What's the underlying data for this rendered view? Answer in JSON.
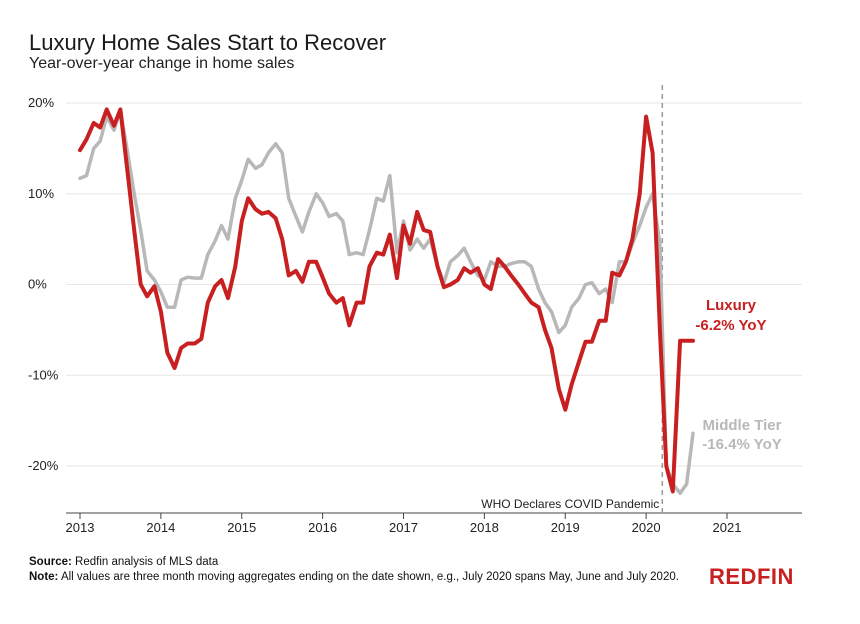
{
  "header": {
    "title": "Luxury Home Sales Start to Recover",
    "subtitle": "Year-over-year change in home sales"
  },
  "footer": {
    "source_label": "Source:",
    "source_text": "Redfin analysis of MLS data",
    "note_label": "Note:",
    "note_text": "All values are three month moving aggregates ending on the date shown, e.g., July 2020 spans May, June and July 2020."
  },
  "logo": {
    "text": "REDFIN"
  },
  "colors": {
    "luxury": "#c82021",
    "middle": "#b8b8b8",
    "grid": "#e6e6e6",
    "brand": "#c82021"
  },
  "chart_data": {
    "type": "line",
    "x_unit": "year",
    "xlim": [
      2012.82,
      2021.9
    ],
    "ylim": [
      -25,
      21
    ],
    "grid": true,
    "x_ticks": [
      2013,
      2014,
      2015,
      2016,
      2017,
      2018,
      2019,
      2020,
      2021
    ],
    "x_tick_labels": [
      "2013",
      "2014",
      "2015",
      "2016",
      "2017",
      "2018",
      "2019",
      "2020",
      "2021"
    ],
    "y_ticks": [
      20,
      10,
      0,
      -10,
      -20
    ],
    "y_tick_labels": [
      "20%",
      "10%",
      "0%",
      "-10%",
      "-20%"
    ],
    "annotation": {
      "x": 2020.2,
      "text": "WHO Declares COVID Pandemic"
    },
    "series": [
      {
        "name": "Middle Tier",
        "label_lines": [
          "Middle Tier",
          "-16.4% YoY"
        ],
        "color": "#b8b8b8",
        "x": [
          2013.0,
          2013.08,
          2013.17,
          2013.25,
          2013.33,
          2013.42,
          2013.5,
          2013.58,
          2013.67,
          2013.75,
          2013.83,
          2013.92,
          2014.0,
          2014.08,
          2014.17,
          2014.25,
          2014.33,
          2014.42,
          2014.5,
          2014.58,
          2014.67,
          2014.75,
          2014.83,
          2014.92,
          2015.0,
          2015.08,
          2015.17,
          2015.25,
          2015.33,
          2015.42,
          2015.5,
          2015.58,
          2015.67,
          2015.75,
          2015.83,
          2015.92,
          2016.0,
          2016.08,
          2016.17,
          2016.25,
          2016.33,
          2016.42,
          2016.5,
          2016.58,
          2016.67,
          2016.75,
          2016.83,
          2016.92,
          2017.0,
          2017.08,
          2017.17,
          2017.25,
          2017.33,
          2017.42,
          2017.5,
          2017.58,
          2017.67,
          2017.75,
          2017.83,
          2017.92,
          2018.0,
          2018.08,
          2018.17,
          2018.25,
          2018.33,
          2018.42,
          2018.5,
          2018.58,
          2018.67,
          2018.75,
          2018.83,
          2018.92,
          2019.0,
          2019.08,
          2019.17,
          2019.25,
          2019.33,
          2019.42,
          2019.5,
          2019.58,
          2019.67,
          2019.75,
          2019.83,
          2019.92,
          2020.0,
          2020.08,
          2020.17,
          2020.25,
          2020.33,
          2020.42,
          2020.5,
          2020.58
        ],
        "values": [
          11.7,
          12.0,
          15.0,
          15.8,
          18.5,
          17.0,
          19.2,
          15.0,
          10.0,
          6.0,
          1.5,
          0.5,
          -0.8,
          -2.5,
          -2.5,
          0.5,
          0.8,
          0.7,
          0.7,
          3.3,
          4.8,
          6.5,
          5.0,
          9.5,
          11.5,
          13.8,
          12.8,
          13.2,
          14.5,
          15.5,
          14.5,
          9.5,
          7.5,
          5.8,
          8.0,
          10.0,
          9.0,
          7.5,
          7.8,
          7.0,
          3.3,
          3.5,
          3.3,
          6.0,
          9.5,
          9.2,
          12.0,
          3.5,
          7.0,
          3.8,
          5.0,
          4.0,
          5.0,
          2.0,
          0.2,
          2.5,
          3.2,
          4.0,
          2.5,
          1.0,
          0.5,
          2.5,
          2.0,
          2.0,
          2.3,
          2.5,
          2.5,
          2.0,
          -0.5,
          -2.0,
          -3.0,
          -5.3,
          -4.5,
          -2.5,
          -1.5,
          0.0,
          0.2,
          -1.0,
          -0.5,
          -2.0,
          2.5,
          2.5,
          4.5,
          6.5,
          8.5,
          10.0,
          4.5,
          -20.0,
          -22.0,
          -23.0,
          -22.0,
          -16.4
        ]
      },
      {
        "name": "Luxury",
        "label_lines": [
          "Luxury",
          "-6.2% YoY"
        ],
        "color": "#c82021",
        "x": [
          2013.0,
          2013.08,
          2013.17,
          2013.25,
          2013.33,
          2013.42,
          2013.5,
          2013.58,
          2013.67,
          2013.75,
          2013.83,
          2013.92,
          2014.0,
          2014.08,
          2014.17,
          2014.25,
          2014.33,
          2014.42,
          2014.5,
          2014.58,
          2014.67,
          2014.75,
          2014.83,
          2014.92,
          2015.0,
          2015.08,
          2015.17,
          2015.25,
          2015.33,
          2015.42,
          2015.5,
          2015.58,
          2015.67,
          2015.75,
          2015.83,
          2015.92,
          2016.0,
          2016.08,
          2016.17,
          2016.25,
          2016.33,
          2016.42,
          2016.5,
          2016.58,
          2016.67,
          2016.75,
          2016.83,
          2016.92,
          2017.0,
          2017.08,
          2017.17,
          2017.25,
          2017.33,
          2017.42,
          2017.5,
          2017.58,
          2017.67,
          2017.75,
          2017.83,
          2017.92,
          2018.0,
          2018.08,
          2018.17,
          2018.25,
          2018.33,
          2018.42,
          2018.5,
          2018.58,
          2018.67,
          2018.75,
          2018.83,
          2018.92,
          2019.0,
          2019.08,
          2019.17,
          2019.25,
          2019.33,
          2019.42,
          2019.5,
          2019.58,
          2019.67,
          2019.75,
          2019.83,
          2019.92,
          2020.0,
          2020.08,
          2020.17,
          2020.25,
          2020.33,
          2020.42,
          2020.5,
          2020.58
        ],
        "values": [
          14.8,
          16.0,
          17.8,
          17.3,
          19.3,
          17.5,
          19.3,
          13.0,
          6.0,
          0.0,
          -1.3,
          -0.2,
          -3.0,
          -7.5,
          -9.2,
          -7.0,
          -6.5,
          -6.5,
          -6.0,
          -2.0,
          -0.2,
          0.5,
          -1.5,
          2.0,
          7.0,
          9.5,
          8.3,
          7.8,
          8.0,
          7.3,
          5.0,
          1.0,
          1.5,
          0.3,
          2.5,
          2.5,
          0.8,
          -1.0,
          -2.0,
          -1.5,
          -4.5,
          -2.0,
          -2.0,
          2.0,
          3.5,
          3.3,
          5.5,
          0.7,
          6.5,
          4.5,
          8.0,
          6.0,
          5.8,
          2.0,
          -0.3,
          0.0,
          0.5,
          1.8,
          1.3,
          1.8,
          0.0,
          -0.5,
          2.8,
          2.0,
          1.0,
          0.0,
          -1.0,
          -2.0,
          -2.5,
          -5.0,
          -7.0,
          -11.5,
          -13.8,
          -11.0,
          -8.5,
          -6.3,
          -6.3,
          -4.0,
          -4.0,
          1.3,
          1.0,
          2.5,
          5.0,
          10.0,
          18.5,
          14.5,
          -5.0,
          -20.0,
          -22.8,
          -6.2,
          -6.2,
          -6.2
        ]
      }
    ]
  }
}
